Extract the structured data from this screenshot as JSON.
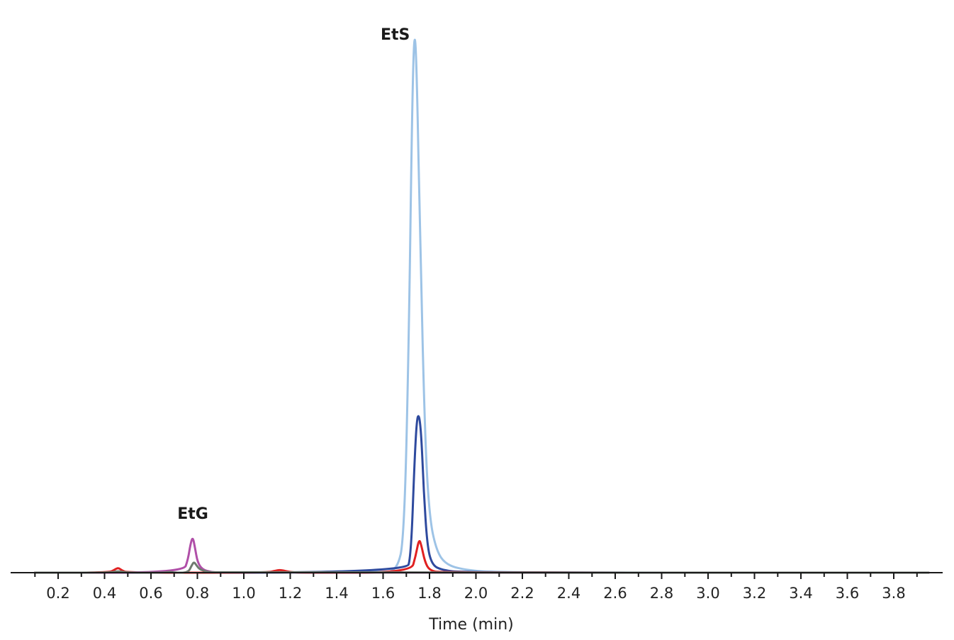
{
  "chart_data": {
    "type": "line",
    "title": "",
    "xlabel": "Time (min)",
    "ylabel": "",
    "xlim": [
      0.0,
      4.0
    ],
    "ylim": [
      0,
      100
    ],
    "grid": false,
    "xticks": [
      0.1,
      0.2,
      0.3,
      0.4,
      0.5,
      0.6,
      0.7,
      0.8,
      0.9,
      1.0,
      1.1,
      1.2,
      1.3,
      1.4,
      1.5,
      1.6,
      1.7,
      1.8,
      1.9,
      2.0,
      2.1,
      2.2,
      2.3,
      2.4,
      2.5,
      2.6,
      2.7,
      2.8,
      2.9,
      3.0,
      3.1,
      3.2,
      3.3,
      3.4,
      3.5,
      3.6,
      3.7,
      3.8,
      3.9
    ],
    "xtick_labels": [
      "0.2",
      "0.4",
      "0.6",
      "0.8",
      "1.0",
      "1.2",
      "1.4",
      "1.6",
      "1.8",
      "2.0",
      "2.2",
      "2.4",
      "2.6",
      "2.8",
      "3.0",
      "3.2",
      "3.4",
      "3.6",
      "3.8"
    ],
    "series": [
      {
        "color": "#9dc3e6",
        "values": [
          [
            0.1,
            0
          ],
          [
            1.6,
            0
          ],
          [
            1.66,
            0.5
          ],
          [
            1.69,
            6
          ],
          [
            1.71,
            40
          ],
          [
            1.725,
            85
          ],
          [
            1.735,
            100
          ],
          [
            1.745,
            92
          ],
          [
            1.76,
            60
          ],
          [
            1.78,
            25
          ],
          [
            1.8,
            10
          ],
          [
            1.83,
            4
          ],
          [
            1.87,
            1.5
          ],
          [
            1.95,
            0.5
          ],
          [
            2.1,
            0
          ],
          [
            3.95,
            0
          ]
        ]
      },
      {
        "color": "#2e4a9e",
        "values": [
          [
            0.1,
            0
          ],
          [
            1.7,
            0
          ],
          [
            1.72,
            3
          ],
          [
            1.735,
            20
          ],
          [
            1.745,
            28
          ],
          [
            1.755,
            29
          ],
          [
            1.765,
            25
          ],
          [
            1.775,
            15
          ],
          [
            1.79,
            5
          ],
          [
            1.81,
            1.5
          ],
          [
            1.85,
            0.5
          ],
          [
            1.95,
            0
          ],
          [
            3.95,
            0
          ]
        ]
      },
      {
        "color": "#e02020",
        "values": [
          [
            0.1,
            0
          ],
          [
            0.42,
            0
          ],
          [
            0.445,
            0.6
          ],
          [
            0.46,
            0.9
          ],
          [
            0.475,
            0.4
          ],
          [
            0.5,
            0
          ],
          [
            1.1,
            0
          ],
          [
            1.14,
            0.4
          ],
          [
            1.16,
            0.5
          ],
          [
            1.2,
            0.1
          ],
          [
            1.25,
            0
          ],
          [
            1.72,
            0
          ],
          [
            1.74,
            3
          ],
          [
            1.755,
            6.2
          ],
          [
            1.765,
            5
          ],
          [
            1.78,
            2
          ],
          [
            1.8,
            0.4
          ],
          [
            1.85,
            0
          ],
          [
            3.95,
            0
          ]
        ]
      },
      {
        "color": "#b04fa8",
        "values": [
          [
            0.1,
            0
          ],
          [
            0.74,
            0
          ],
          [
            0.76,
            2.5
          ],
          [
            0.77,
            5.2
          ],
          [
            0.78,
            6.6
          ],
          [
            0.79,
            4.5
          ],
          [
            0.8,
            2
          ],
          [
            0.82,
            0.6
          ],
          [
            0.86,
            0.1
          ],
          [
            0.9,
            0
          ],
          [
            3.95,
            0
          ]
        ]
      },
      {
        "color": "#6f7a6f",
        "values": [
          [
            0.1,
            0
          ],
          [
            0.42,
            0
          ],
          [
            0.46,
            0.3
          ],
          [
            0.5,
            0
          ],
          [
            0.66,
            0
          ],
          [
            0.68,
            0.2
          ],
          [
            0.7,
            0
          ],
          [
            0.76,
            0
          ],
          [
            0.775,
            1.3
          ],
          [
            0.785,
            2.0
          ],
          [
            0.795,
            1.4
          ],
          [
            0.81,
            0.6
          ],
          [
            0.84,
            0.2
          ],
          [
            0.88,
            0
          ],
          [
            3.95,
            0
          ]
        ]
      }
    ],
    "annotations": [
      {
        "text": "EtG",
        "x": 0.78,
        "y": 7.0
      },
      {
        "text": "EtS",
        "x": 1.735,
        "y": 100
      }
    ]
  }
}
